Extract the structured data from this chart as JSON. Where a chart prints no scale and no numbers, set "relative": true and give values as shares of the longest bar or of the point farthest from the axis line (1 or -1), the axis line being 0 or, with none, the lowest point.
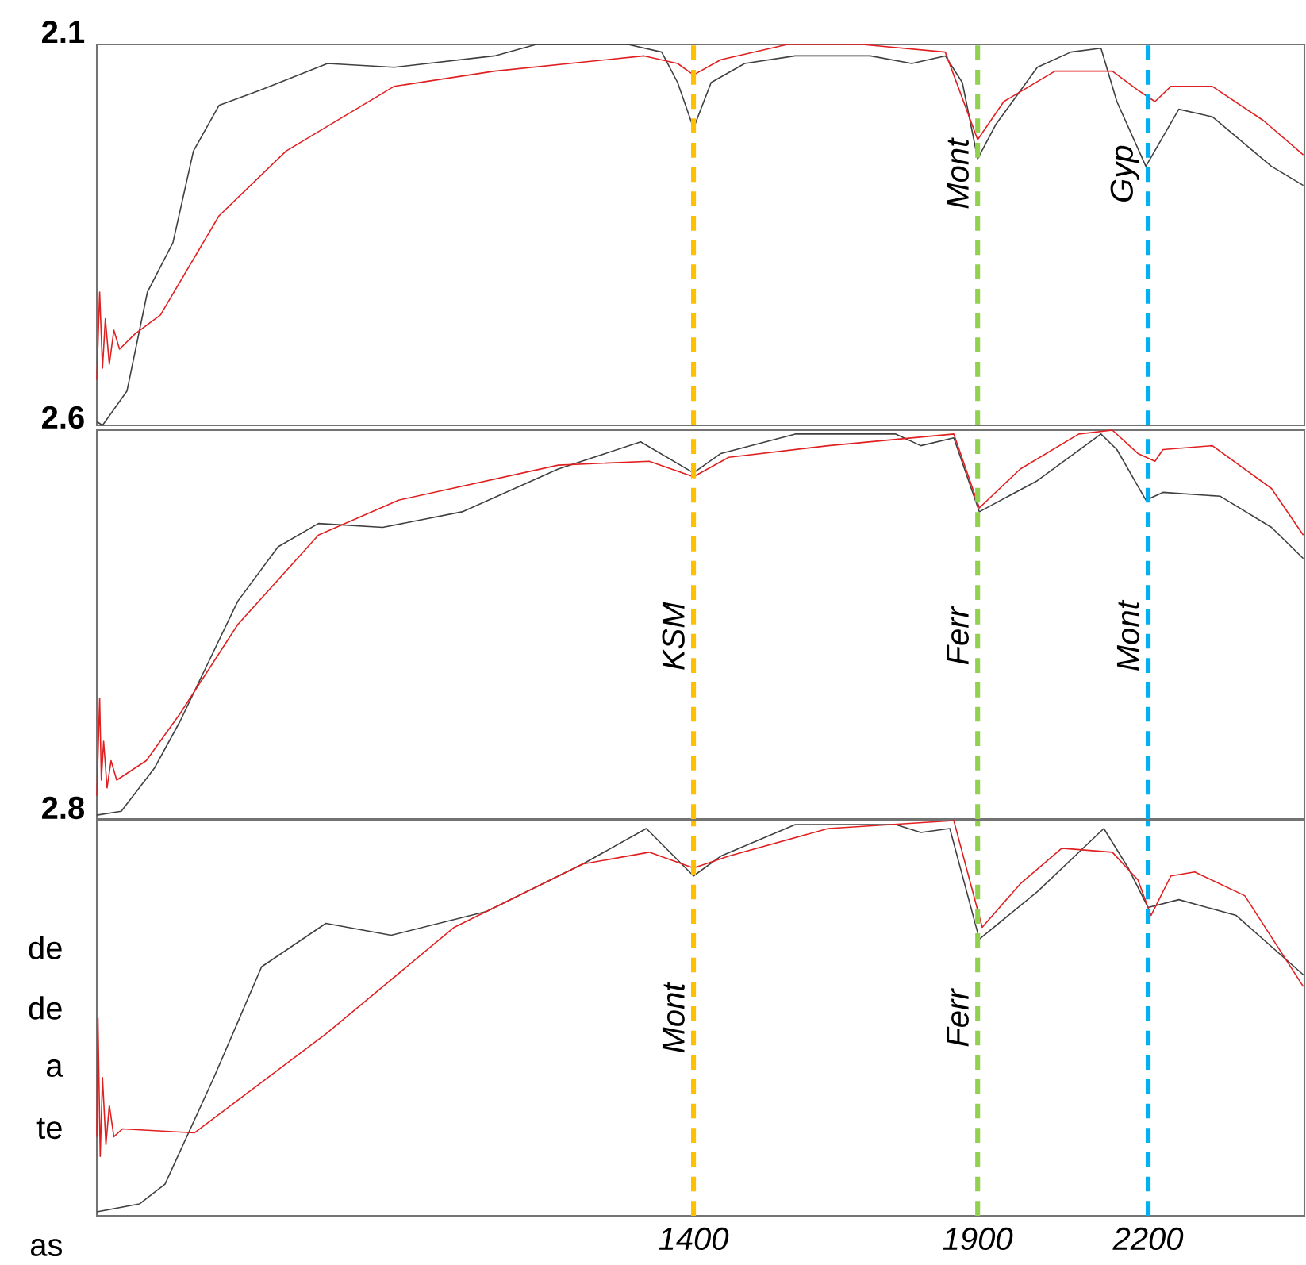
{
  "chart_data": [
    {
      "type": "line",
      "title": "2.1",
      "relative": true,
      "xlim": [
        350,
        2475
      ],
      "series": [
        {
          "color": "#404040",
          "x": [
            350,
            360,
            403,
            439,
            484,
            520,
            565,
            638,
            756,
            873,
            1050,
            1123,
            1285,
            1344,
            1372,
            1400,
            1431,
            1490,
            1579,
            1711,
            1784,
            1843,
            1873,
            1900,
            1932,
            2005,
            2064,
            2117,
            2145,
            2196,
            2254,
            2313,
            2417,
            2473
          ],
          "values": [
            0.01,
            0,
            0.09,
            0.35,
            0.48,
            0.72,
            0.84,
            0.88,
            0.95,
            0.94,
            0.97,
            1.0,
            1.0,
            0.98,
            0.9,
            0.78,
            0.9,
            0.95,
            0.97,
            0.97,
            0.95,
            0.97,
            0.9,
            0.7,
            0.79,
            0.94,
            0.98,
            0.99,
            0.85,
            0.68,
            0.83,
            0.81,
            0.68,
            0.63
          ]
        },
        {
          "color": "#e02020",
          "x": [
            350,
            355,
            360,
            365,
            372,
            380,
            390,
            417,
            462,
            565,
            683,
            873,
            1050,
            1313,
            1372,
            1400,
            1448,
            1565,
            1697,
            1843,
            1900,
            1946,
            2036,
            2137,
            2182,
            2212,
            2240,
            2313,
            2403,
            2473
          ],
          "values": [
            0.12,
            0.35,
            0.15,
            0.28,
            0.16,
            0.25,
            0.2,
            0.24,
            0.29,
            0.55,
            0.72,
            0.89,
            0.93,
            0.97,
            0.95,
            0.92,
            0.96,
            1.0,
            1.0,
            0.98,
            0.75,
            0.85,
            0.93,
            0.93,
            0.88,
            0.85,
            0.89,
            0.89,
            0.8,
            0.71
          ]
        }
      ],
      "ref_lines": [
        {
          "axis": "x",
          "value": 1400,
          "color": "#ffc000",
          "line_style": "dashed"
        },
        {
          "axis": "x",
          "value": 1900,
          "color": "#92d050",
          "line_style": "dashed",
          "label": "Mont"
        },
        {
          "axis": "x",
          "value": 2200,
          "color": "#00b0f0",
          "line_style": "dashed",
          "label": "Gyp"
        }
      ]
    },
    {
      "type": "line",
      "title": "2.6",
      "relative": true,
      "xlim": [
        350,
        2475
      ],
      "series": [
        {
          "color": "#404040",
          "x": [
            350,
            393,
            451,
            496,
            598,
            669,
            740,
            853,
            993,
            1162,
            1307,
            1400,
            1448,
            1579,
            1756,
            1800,
            1858,
            1903,
            2005,
            2117,
            2145,
            2196,
            2226,
            2327,
            2417,
            2473
          ],
          "values": [
            0.01,
            0.02,
            0.13,
            0.25,
            0.56,
            0.7,
            0.76,
            0.75,
            0.79,
            0.9,
            0.97,
            0.89,
            0.94,
            0.99,
            0.99,
            0.96,
            0.98,
            0.79,
            0.87,
            0.99,
            0.95,
            0.82,
            0.84,
            0.83,
            0.75,
            0.67
          ]
        },
        {
          "color": "#e02020",
          "x": [
            350,
            355,
            358,
            362,
            368,
            375,
            385,
            437,
            496,
            598,
            740,
            881,
            1162,
            1322,
            1400,
            1462,
            1637,
            1858,
            1903,
            1975,
            2078,
            2137,
            2182,
            2212,
            2226,
            2313,
            2417,
            2473
          ],
          "values": [
            0.06,
            0.31,
            0.1,
            0.2,
            0.08,
            0.15,
            0.1,
            0.15,
            0.27,
            0.5,
            0.73,
            0.82,
            0.91,
            0.92,
            0.88,
            0.93,
            0.96,
            0.99,
            0.8,
            0.9,
            0.99,
            1.0,
            0.94,
            0.92,
            0.95,
            0.96,
            0.85,
            0.73
          ]
        }
      ],
      "ref_lines": [
        {
          "axis": "x",
          "value": 1400,
          "color": "#ffc000",
          "line_style": "dashed",
          "label": "KSM"
        },
        {
          "axis": "x",
          "value": 1900,
          "color": "#92d050",
          "line_style": "dashed",
          "label": "Ferr"
        },
        {
          "axis": "x",
          "value": 2200,
          "color": "#00b0f0",
          "line_style": "dashed",
          "label": "Mont"
        }
      ]
    },
    {
      "type": "line",
      "title": "2.8",
      "relative": true,
      "xlim": [
        350,
        2475
      ],
      "xticks": [
        1400,
        1900,
        2200
      ],
      "series": [
        {
          "color": "#404040",
          "x": [
            350,
            425,
            470,
            556,
            640,
            753,
            868,
            1036,
            1205,
            1317,
            1400,
            1448,
            1579,
            1756,
            1800,
            1851,
            1903,
            2005,
            2122,
            2165,
            2200,
            2254,
            2355,
            2473
          ],
          "values": [
            0.01,
            0.03,
            0.08,
            0.35,
            0.63,
            0.74,
            0.71,
            0.77,
            0.89,
            0.98,
            0.86,
            0.91,
            0.99,
            0.99,
            0.97,
            0.98,
            0.7,
            0.82,
            0.98,
            0.88,
            0.78,
            0.8,
            0.76,
            0.61
          ]
        },
        {
          "color": "#e02020",
          "x": [
            350,
            352,
            356,
            360,
            366,
            372,
            380,
            395,
            522,
            753,
            979,
            1205,
            1322,
            1400,
            1462,
            1637,
            1858,
            1908,
            1975,
            2048,
            2137,
            2182,
            2205,
            2240,
            2282,
            2370,
            2473
          ],
          "values": [
            0.2,
            0.5,
            0.15,
            0.35,
            0.18,
            0.28,
            0.2,
            0.22,
            0.21,
            0.46,
            0.73,
            0.89,
            0.92,
            0.88,
            0.91,
            0.98,
            1.0,
            0.73,
            0.84,
            0.93,
            0.92,
            0.85,
            0.76,
            0.86,
            0.87,
            0.81,
            0.58
          ]
        }
      ],
      "ref_lines": [
        {
          "axis": "x",
          "value": 1400,
          "color": "#ffc000",
          "line_style": "dashed",
          "label": "Mont"
        },
        {
          "axis": "x",
          "value": 1900,
          "color": "#92d050",
          "line_style": "dashed",
          "label": "Ferr"
        },
        {
          "axis": "x",
          "value": 2200,
          "color": "#00b0f0",
          "line_style": "dashed"
        }
      ],
      "annotations": [
        "de",
        "de",
        "a",
        "te",
        "as"
      ]
    }
  ]
}
